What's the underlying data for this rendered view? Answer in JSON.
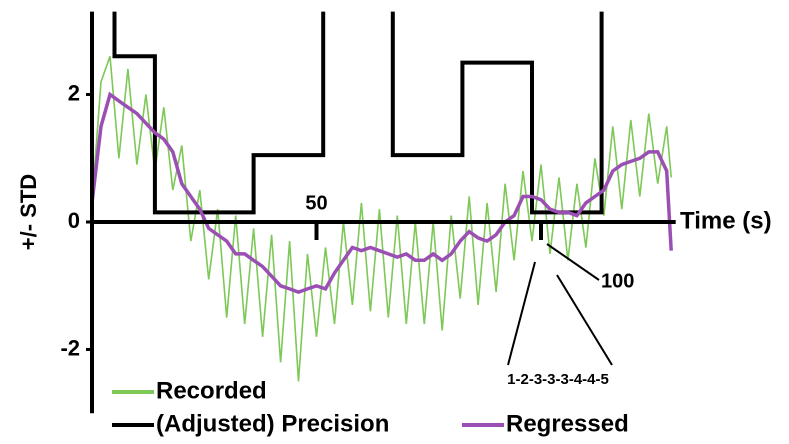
{
  "chart_data": {
    "type": "line",
    "ylabel": "+/- STD",
    "xlabel": "Time (s)",
    "xlim": [
      0,
      130
    ],
    "ylim": [
      -3,
      3.3
    ],
    "xticks": [
      50,
      100
    ],
    "yticks": [
      -2,
      0,
      2
    ],
    "annotation": "1-2-3-3-3-4-4-5",
    "series": [
      {
        "name": "Recorded",
        "color": "#7dc857",
        "x": [
          0,
          2,
          4,
          6,
          8,
          10,
          12,
          14,
          16,
          18,
          20,
          22,
          24,
          26,
          28,
          30,
          32,
          34,
          36,
          38,
          40,
          42,
          44,
          46,
          48,
          50,
          52,
          54,
          56,
          58,
          60,
          62,
          64,
          66,
          68,
          70,
          72,
          74,
          76,
          78,
          80,
          82,
          84,
          86,
          88,
          90,
          92,
          94,
          96,
          98,
          100,
          102,
          104,
          106,
          108,
          110,
          112,
          114,
          116,
          118,
          120,
          122,
          124,
          126,
          128,
          129
        ],
        "values": [
          0.3,
          2.2,
          2.6,
          1.0,
          2.4,
          0.9,
          2.0,
          0.8,
          1.8,
          0.5,
          1.2,
          -0.3,
          0.5,
          -0.9,
          0.2,
          -1.5,
          0.1,
          -1.6,
          -0.1,
          -1.8,
          -0.2,
          -2.2,
          -0.3,
          -2.5,
          -0.5,
          -1.8,
          -0.4,
          -1.6,
          0.0,
          -1.3,
          0.3,
          -1.4,
          0.2,
          -1.5,
          0.1,
          -1.6,
          0.0,
          -1.6,
          0.0,
          -1.7,
          0.1,
          -1.2,
          0.4,
          -1.3,
          0.3,
          -1.1,
          0.6,
          -0.6,
          0.8,
          -0.3,
          0.9,
          -0.5,
          0.7,
          -0.6,
          0.6,
          -0.4,
          1.0,
          0.1,
          1.5,
          0.2,
          1.6,
          0.4,
          1.7,
          0.6,
          1.5,
          0.7
        ]
      },
      {
        "name": "(Adjusted) Precision",
        "color": "#000000",
        "x": [
          5,
          5,
          14,
          14,
          36,
          36,
          51.5,
          51.5,
          60,
          67,
          67,
          82.5,
          82.5,
          98,
          98,
          113.5,
          113.5
        ],
        "values": [
          3.3,
          2.6,
          2.6,
          0.15,
          0.15,
          1.05,
          1.05,
          3.3,
          null,
          3.3,
          1.05,
          1.05,
          2.5,
          2.5,
          0.15,
          0.15,
          3.3
        ]
      },
      {
        "name": "Regressed",
        "color": "#9b4fb4",
        "x": [
          0,
          2,
          4,
          6,
          8,
          10,
          12,
          14,
          16,
          18,
          20,
          22,
          24,
          26,
          28,
          30,
          32,
          34,
          36,
          38,
          40,
          42,
          44,
          46,
          48,
          50,
          52,
          54,
          56,
          58,
          60,
          62,
          64,
          66,
          68,
          70,
          72,
          74,
          76,
          78,
          80,
          82,
          84,
          86,
          88,
          90,
          92,
          94,
          96,
          98,
          100,
          102,
          104,
          106,
          108,
          110,
          112,
          114,
          116,
          118,
          120,
          122,
          124,
          126,
          128,
          129
        ],
        "values": [
          0.3,
          1.5,
          2.0,
          1.9,
          1.8,
          1.7,
          1.55,
          1.4,
          1.3,
          1.1,
          0.6,
          0.4,
          0.2,
          -0.1,
          -0.2,
          -0.3,
          -0.5,
          -0.5,
          -0.6,
          -0.7,
          -0.85,
          -1.0,
          -1.05,
          -1.1,
          -1.05,
          -1.0,
          -1.05,
          -0.8,
          -0.6,
          -0.4,
          -0.45,
          -0.4,
          -0.45,
          -0.5,
          -0.55,
          -0.5,
          -0.6,
          -0.6,
          -0.5,
          -0.6,
          -0.5,
          -0.3,
          -0.15,
          -0.25,
          -0.3,
          -0.2,
          0.0,
          0.1,
          0.4,
          0.4,
          0.35,
          0.2,
          0.15,
          0.15,
          0.1,
          0.3,
          0.4,
          0.5,
          0.8,
          0.9,
          0.95,
          1.0,
          1.1,
          1.1,
          0.8,
          -0.45
        ]
      }
    ]
  }
}
